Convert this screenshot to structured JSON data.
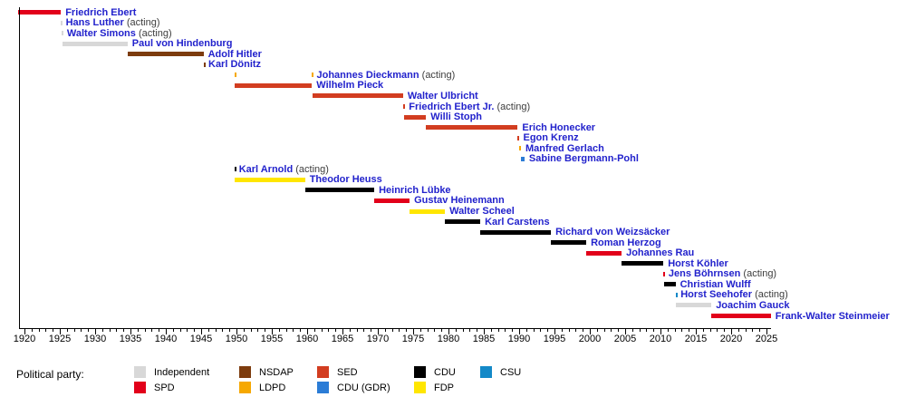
{
  "chart_data": {
    "type": "timeline",
    "title": "",
    "xlabel": "",
    "x_axis": {
      "start": 1919.2,
      "end": 2025.7,
      "tick_start": 1920,
      "tick_end": 2025,
      "major_step": 5,
      "minor_step": 1
    },
    "party_colors": {
      "Independent": "#d8d8d8",
      "SPD": "#e2001a",
      "NSDAP": "#7d3c0e",
      "LDPD": "#f6a800",
      "SED": "#d23d20",
      "CDU (GDR)": "#2b7cd6",
      "CDU": "#000000",
      "FDP": "#ffe600",
      "CSU": "#1489c8"
    },
    "people": [
      {
        "name": "Friedrich Ebert",
        "suffix": "",
        "party": "SPD",
        "terms": [
          [
            1919.1,
            1925.16
          ]
        ]
      },
      {
        "name": "Hans Luther",
        "suffix": " (acting)",
        "party": "Independent",
        "terms": [
          [
            1925.16,
            1925.2
          ]
        ]
      },
      {
        "name": "Walter Simons",
        "suffix": " (acting)",
        "party": "Independent",
        "terms": [
          [
            1925.2,
            1925.37
          ]
        ]
      },
      {
        "name": "Paul von Hindenburg",
        "suffix": "",
        "party": "Independent",
        "terms": [
          [
            1925.37,
            1934.59
          ]
        ]
      },
      {
        "name": "Adolf Hitler",
        "suffix": "",
        "party": "NSDAP",
        "terms": [
          [
            1934.59,
            1945.33
          ]
        ]
      },
      {
        "name": "Karl Dönitz",
        "suffix": "",
        "party": "NSDAP",
        "terms": [
          [
            1945.33,
            1945.39
          ]
        ]
      },
      {
        "name": "Johannes Dieckmann",
        "suffix": " (acting)",
        "party": "LDPD",
        "terms": [
          [
            1949.75,
            1949.78
          ],
          [
            1960.68,
            1960.7
          ]
        ]
      },
      {
        "name": "Wilhelm Pieck",
        "suffix": "",
        "party": "SED",
        "terms": [
          [
            1949.78,
            1960.68
          ]
        ]
      },
      {
        "name": "Walter Ulbricht",
        "suffix": "",
        "party": "SED",
        "terms": [
          [
            1960.7,
            1973.58
          ]
        ]
      },
      {
        "name": "Friedrich Ebert Jr.",
        "suffix": " (acting)",
        "party": "SED",
        "terms": [
          [
            1973.58,
            1973.76
          ]
        ]
      },
      {
        "name": "Willi Stoph",
        "suffix": "",
        "party": "SED",
        "terms": [
          [
            1973.76,
            1976.83
          ]
        ]
      },
      {
        "name": "Erich Honecker",
        "suffix": "",
        "party": "SED",
        "terms": [
          [
            1976.83,
            1989.8
          ]
        ]
      },
      {
        "name": "Egon Krenz",
        "suffix": "",
        "party": "SED",
        "terms": [
          [
            1989.8,
            1989.93
          ]
        ]
      },
      {
        "name": "Manfred Gerlach",
        "suffix": "",
        "party": "LDPD",
        "terms": [
          [
            1989.93,
            1990.26
          ]
        ]
      },
      {
        "name": "Sabine Bergmann-Pohl",
        "suffix": "",
        "party": "CDU (GDR)",
        "terms": [
          [
            1990.26,
            1990.75
          ]
        ]
      },
      {
        "name": "Karl Arnold",
        "suffix": " (acting)",
        "party": "CDU",
        "terms": [
          [
            1949.68,
            1949.71
          ]
        ]
      },
      {
        "name": "Theodor Heuss",
        "suffix": "",
        "party": "FDP",
        "terms": [
          [
            1949.71,
            1959.7
          ]
        ]
      },
      {
        "name": "Heinrich Lübke",
        "suffix": "",
        "party": "CDU",
        "terms": [
          [
            1959.7,
            1969.5
          ]
        ]
      },
      {
        "name": "Gustav Heinemann",
        "suffix": "",
        "party": "SPD",
        "terms": [
          [
            1969.5,
            1974.5
          ]
        ]
      },
      {
        "name": "Walter Scheel",
        "suffix": "",
        "party": "FDP",
        "terms": [
          [
            1974.5,
            1979.5
          ]
        ]
      },
      {
        "name": "Karl Carstens",
        "suffix": "",
        "party": "CDU",
        "terms": [
          [
            1979.5,
            1984.5
          ]
        ]
      },
      {
        "name": "Richard von Weizsäcker",
        "suffix": "",
        "party": "CDU",
        "terms": [
          [
            1984.5,
            1994.5
          ]
        ]
      },
      {
        "name": "Roman Herzog",
        "suffix": "",
        "party": "CDU",
        "terms": [
          [
            1994.5,
            1999.5
          ]
        ]
      },
      {
        "name": "Johannes Rau",
        "suffix": "",
        "party": "SPD",
        "terms": [
          [
            1999.5,
            2004.5
          ]
        ]
      },
      {
        "name": "Horst Köhler",
        "suffix": "",
        "party": "CDU",
        "terms": [
          [
            2004.5,
            2010.41
          ]
        ]
      },
      {
        "name": "Jens Böhrnsen",
        "suffix": " (acting)",
        "party": "SPD",
        "terms": [
          [
            2010.41,
            2010.5
          ]
        ]
      },
      {
        "name": "Christian Wulff",
        "suffix": "",
        "party": "CDU",
        "terms": [
          [
            2010.5,
            2012.13
          ]
        ]
      },
      {
        "name": "Horst Seehofer",
        "suffix": " (acting)",
        "party": "CSU",
        "terms": [
          [
            2012.13,
            2012.21
          ]
        ]
      },
      {
        "name": "Joachim Gauck",
        "suffix": "",
        "party": "Independent",
        "terms": [
          [
            2012.21,
            2017.21
          ]
        ]
      },
      {
        "name": "Frank-Walter Steinmeier",
        "suffix": "",
        "party": "SPD",
        "terms": [
          [
            2017.22,
            2025.6
          ]
        ]
      }
    ],
    "legend": {
      "title": "Political party:",
      "items": [
        {
          "label": "Independent",
          "party": "Independent"
        },
        {
          "label": "SPD",
          "party": "SPD"
        },
        {
          "label": "NSDAP",
          "party": "NSDAP"
        },
        {
          "label": "LDPD",
          "party": "LDPD"
        },
        {
          "label": "SED",
          "party": "SED"
        },
        {
          "label": "CDU (GDR)",
          "party": "CDU (GDR)"
        },
        {
          "label": "CDU",
          "party": "CDU"
        },
        {
          "label": "FDP",
          "party": "FDP"
        },
        {
          "label": "CSU",
          "party": "CSU"
        }
      ]
    }
  }
}
